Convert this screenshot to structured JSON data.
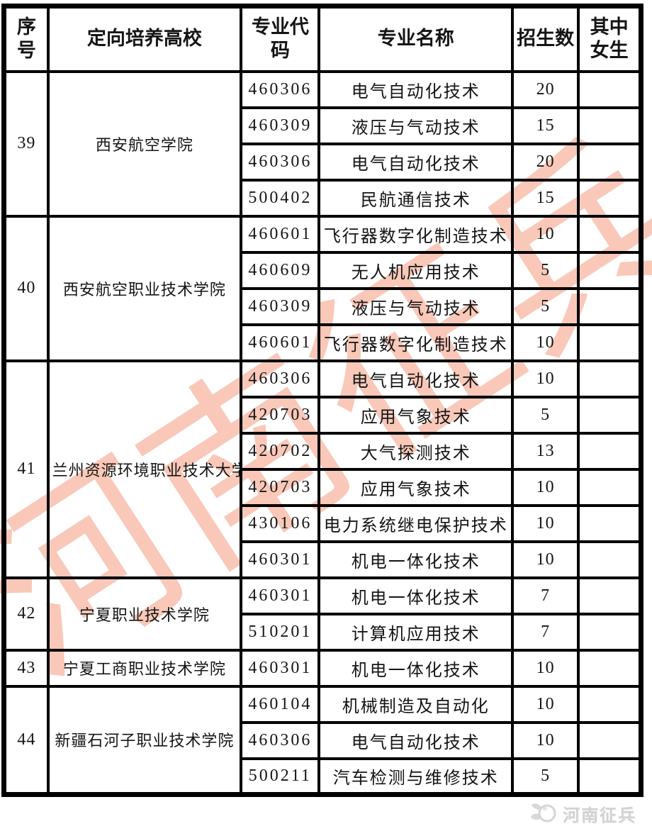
{
  "table": {
    "header": {
      "seq": "序号",
      "college": "定向培养高校",
      "major_code": "专业代码",
      "major_name": "专业名称",
      "enroll_count": "招生数",
      "female_count": "其中女生"
    },
    "groups": [
      {
        "seq": "39",
        "college": "西安航空学院",
        "majors": [
          {
            "code": "460306",
            "name": "电气自动化技术",
            "count": "20",
            "female": ""
          },
          {
            "code": "460309",
            "name": "液压与气动技术",
            "count": "15",
            "female": ""
          },
          {
            "code": "460306",
            "name": "电气自动化技术",
            "count": "20",
            "female": ""
          },
          {
            "code": "500402",
            "name": "民航通信技术",
            "count": "15",
            "female": ""
          }
        ]
      },
      {
        "seq": "40",
        "college": "西安航空职业技术学院",
        "majors": [
          {
            "code": "460601",
            "name": "飞行器数字化制造技术",
            "count": "10",
            "female": ""
          },
          {
            "code": "460609",
            "name": "无人机应用技术",
            "count": "5",
            "female": ""
          },
          {
            "code": "460309",
            "name": "液压与气动技术",
            "count": "5",
            "female": ""
          },
          {
            "code": "460601",
            "name": "飞行器数字化制造技术",
            "count": "10",
            "female": ""
          }
        ]
      },
      {
        "seq": "41",
        "college": "兰州资源环境职业技术大学",
        "majors": [
          {
            "code": "460306",
            "name": "电气自动化技术",
            "count": "10",
            "female": ""
          },
          {
            "code": "420703",
            "name": "应用气象技术",
            "count": "5",
            "female": ""
          },
          {
            "code": "420702",
            "name": "大气探测技术",
            "count": "13",
            "female": ""
          },
          {
            "code": "420703",
            "name": "应用气象技术",
            "count": "10",
            "female": ""
          },
          {
            "code": "430106",
            "name": "电力系统继电保护技术",
            "count": "10",
            "female": ""
          },
          {
            "code": "460301",
            "name": "机电一体化技术",
            "count": "10",
            "female": ""
          }
        ]
      },
      {
        "seq": "42",
        "college": "宁夏职业技术学院",
        "majors": [
          {
            "code": "460301",
            "name": "机电一体化技术",
            "count": "7",
            "female": ""
          },
          {
            "code": "510201",
            "name": "计算机应用技术",
            "count": "7",
            "female": ""
          }
        ]
      },
      {
        "seq": "43",
        "college": "宁夏工商职业技术学院",
        "majors": [
          {
            "code": "460301",
            "name": "机电一体化技术",
            "count": "10",
            "female": ""
          }
        ]
      },
      {
        "seq": "44",
        "college": "新疆石河子职业技术学院",
        "majors": [
          {
            "code": "460104",
            "name": "机械制造及自动化",
            "count": "10",
            "female": ""
          },
          {
            "code": "460306",
            "name": "电气自动化技术",
            "count": "10",
            "female": ""
          },
          {
            "code": "500211",
            "name": "汽车检测与维修技术",
            "count": "5",
            "female": ""
          }
        ]
      }
    ]
  },
  "watermark": {
    "text": "河南征兵",
    "color": "rgba(242,133,98,0.45)"
  },
  "footer": {
    "brand": "河南征兵",
    "icon_color": "#d4d4d4"
  }
}
